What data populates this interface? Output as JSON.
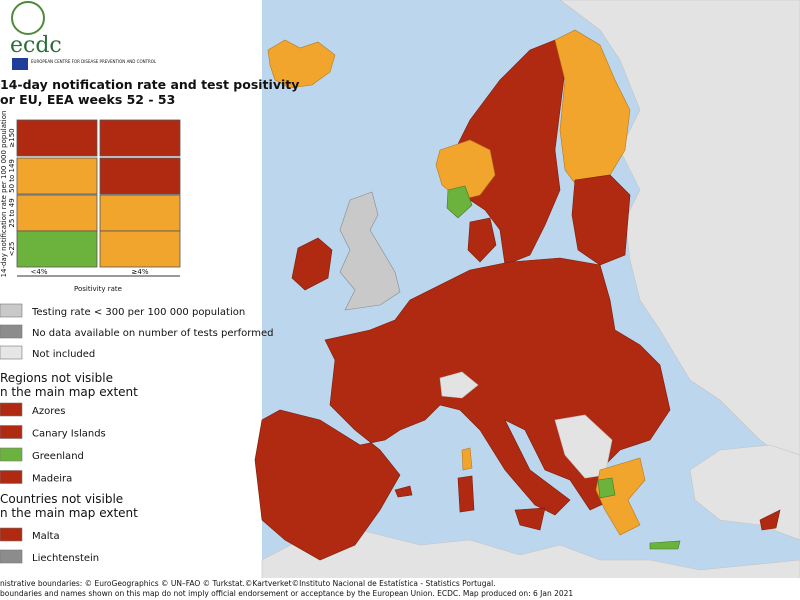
{
  "header": {
    "logo": "ecdc",
    "organisation": "EUROPEAN CENTRE FOR DISEASE PREVENTION AND CONTROL",
    "title_lines": [
      "14-day notification rate and test positivity",
      "or EU, EEA weeks 52 - 53"
    ]
  },
  "matrix": {
    "y_label": "14-day notification rate per 100 000 population",
    "rows": [
      "≥150",
      "50 to 149",
      "25 to 49",
      "<25"
    ],
    "columns": [
      "<4%",
      "≥4%"
    ],
    "x_label": "Positivity rate",
    "cell_colors": [
      [
        "#b02a12",
        "#b02a12"
      ],
      [
        "#f2a52c",
        "#b02a12"
      ],
      [
        "#f2a52c",
        "#f2a52c"
      ],
      [
        "#6cb33e",
        "#f2a52c"
      ]
    ]
  },
  "legend": [
    {
      "label": "Testing rate < 300 per 100 000 population",
      "color": "#c9c9c9"
    },
    {
      "label": "No data available on number of tests performed",
      "color": "#8c8c8c"
    },
    {
      "label": "Not included",
      "color": "#e6e6e6"
    }
  ],
  "regions": {
    "heading_lines": [
      "Regions not visible",
      "n the main map extent"
    ],
    "items": [
      {
        "label": "Azores",
        "color": "#b02a12"
      },
      {
        "label": "Canary Islands",
        "color": "#b02a12"
      },
      {
        "label": "Greenland",
        "color": "#6cb33e"
      },
      {
        "label": "Madeira",
        "color": "#b02a12"
      }
    ]
  },
  "countries": {
    "heading_lines": [
      "Countries not visible",
      "n the main map extent"
    ],
    "items": [
      {
        "label": "Malta",
        "color": "#b02a12"
      },
      {
        "label": "Liechtenstein",
        "color": "#8c8c8c"
      }
    ]
  },
  "footer": [
    "nistrative boundaries: © EuroGeographics © UN–FAO © Turkstat.©Kartverket©Instituto Nacional de Estatística - Statistics Portugal.",
    "boundaries and names shown on this map do not imply official endorsement or acceptance by the European Union. ECDC. Map produced on: 6 Jan 2021"
  ]
}
